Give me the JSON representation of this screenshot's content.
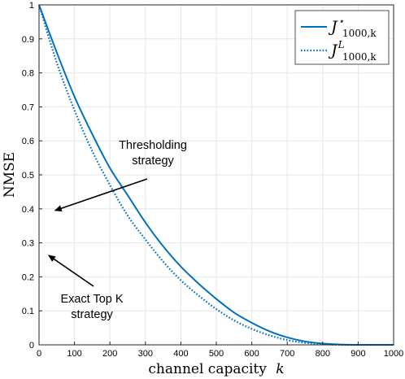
{
  "chart_data": {
    "type": "line",
    "xlabel_main": "channel capacity",
    "xlabel_var": "k",
    "ylabel": "NMSE",
    "xlim": [
      0,
      1000
    ],
    "ylim": [
      0,
      1
    ],
    "xticks": [
      0,
      100,
      200,
      300,
      400,
      500,
      600,
      700,
      800,
      900,
      1000
    ],
    "yticks": [
      0,
      0.1,
      0.2,
      0.3,
      0.4,
      0.5,
      0.6,
      0.7,
      0.8,
      0.9,
      1
    ],
    "ytick_labels": [
      "0",
      "0.1",
      "0.2",
      "0.3",
      "0.4",
      "0.5",
      "0.6",
      "0.7",
      "0.8",
      "0.9",
      "1"
    ],
    "grid": true,
    "legend_position": "top-right",
    "color": "#0072bd",
    "series": [
      {
        "legend_base": "J",
        "legend_sub": "1000,k",
        "legend_sup": "⋆",
        "linestyle": "solid",
        "x": [
          0,
          50,
          100,
          150,
          200,
          250,
          300,
          350,
          400,
          450,
          500,
          550,
          600,
          650,
          700,
          750,
          800,
          850,
          900,
          950,
          1000
        ],
        "y": [
          1.0,
          0.86,
          0.73,
          0.62,
          0.52,
          0.44,
          0.36,
          0.29,
          0.23,
          0.18,
          0.135,
          0.095,
          0.065,
          0.04,
          0.022,
          0.01,
          0.004,
          0.001,
          0.0,
          0.0,
          0.0
        ]
      },
      {
        "legend_base": "J",
        "legend_sub": "1000,k",
        "legend_sup": "L",
        "linestyle": "dotted",
        "x": [
          0,
          50,
          100,
          150,
          200,
          250,
          300,
          350,
          400,
          450,
          500,
          550,
          600,
          650,
          700,
          750,
          800,
          850,
          900,
          950,
          1000
        ],
        "y": [
          1.0,
          0.83,
          0.69,
          0.57,
          0.47,
          0.38,
          0.31,
          0.245,
          0.19,
          0.145,
          0.105,
          0.072,
          0.047,
          0.028,
          0.014,
          0.006,
          0.002,
          0.0,
          0.0,
          0.0,
          0.0
        ]
      }
    ],
    "annotations": [
      {
        "lines": [
          "Thresholding",
          "strategy"
        ],
        "arrow_to": [
          215,
          0.4
        ]
      },
      {
        "lines": [
          "Exact Top K",
          "strategy"
        ],
        "arrow_to": [
          268,
          0.275
        ]
      }
    ]
  }
}
